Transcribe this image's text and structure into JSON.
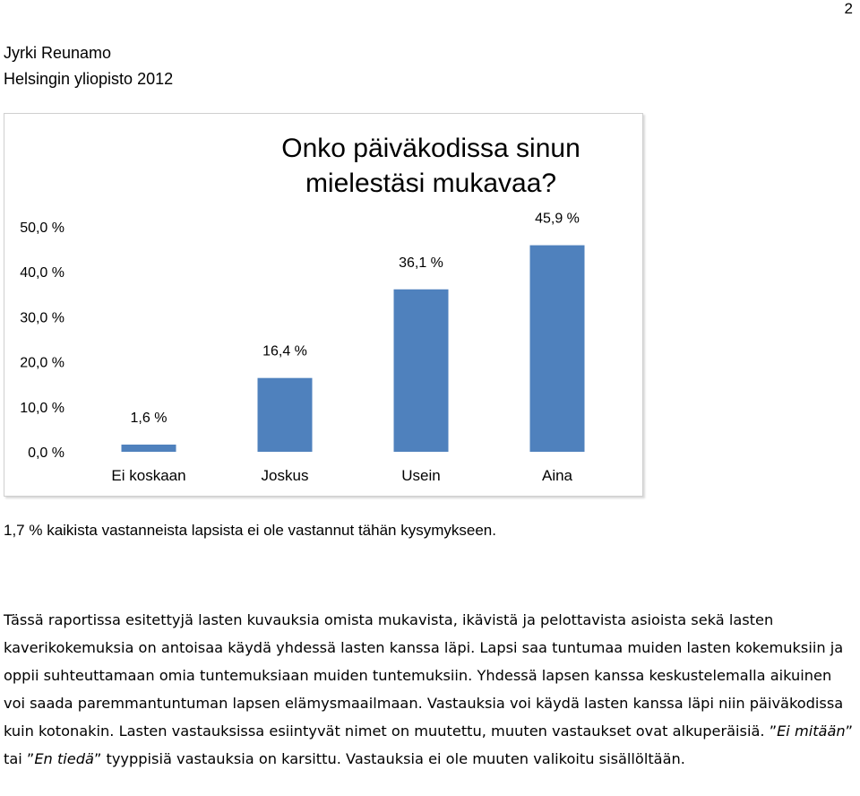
{
  "page_number": "2",
  "header": {
    "author": "Jyrki Reunamo",
    "institution": "Helsingin yliopisto 2012"
  },
  "chart_data": {
    "type": "bar",
    "title": "Onko päiväkodissa sinun mielestäsi mukavaa?",
    "categories": [
      "Ei koskaan",
      "Joskus",
      "Usein",
      "Aina"
    ],
    "values": [
      1.6,
      16.4,
      36.1,
      45.9
    ],
    "value_labels": [
      "1,6 %",
      "16,4 %",
      "36,1 %",
      "45,9 %"
    ],
    "yticks": [
      0,
      10,
      20,
      30,
      40,
      50
    ],
    "ytick_labels": [
      "0,0 %",
      "10,0 %",
      "20,0 %",
      "30,0 %",
      "40,0 %",
      "50,0 %"
    ],
    "ylim": [
      0,
      50
    ],
    "bar_color": "#4f81bd",
    "grid": false,
    "legend": false
  },
  "note": "1,7 % kaikista vastanneista lapsista ei ole vastannut tähän kysymykseen.",
  "body": {
    "p1": "Tässä raportissa esitettyjä lasten kuvauksia omista mukavista, ikävistä ja pelottavista asioista sekä lasten kaverikokemuksia on antoisaa käydä yhdessä lasten kanssa läpi. Lapsi saa tuntumaa muiden lasten kokemuksiin ja oppii suhteuttamaan omia tuntemuksiaan muiden tuntemuksiin. Yhdessä lapsen kanssa keskustelemalla aikuinen voi saada paremmantuntuman lapsen elämysmaailmaan. Vastauksia voi käydä lasten kanssa läpi niin päiväkodissa kuin kotonakin. Lasten vastauksissa esiintyvät nimet on muutettu, muuten vastaukset ovat alkuperäisiä. ",
    "q1": "”",
    "em1": "Ei mitään",
    "q2": "”",
    "mid": " tai ",
    "q3": "”",
    "em2": "En tiedä",
    "q4": "”",
    "p2": " tyyppisiä vastauksia on karsittu. Vastauksia ei ole muuten valikoitu sisällöltään."
  }
}
